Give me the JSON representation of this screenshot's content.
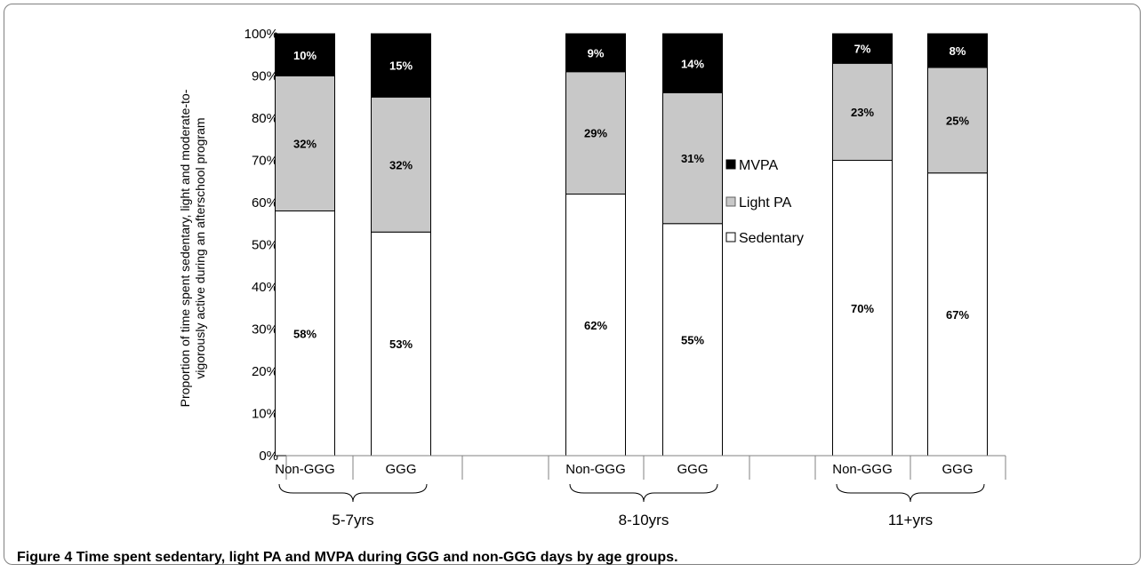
{
  "figure_caption": {
    "label": "Figure 4",
    "text": "Time spent sedentary, light PA and MVPA during GGG and non-GGG days by age groups."
  },
  "chart_data": {
    "type": "bar",
    "stacked": true,
    "ylabel": "Proportion of time spent sedentary, light and moderate-to-vigorously active during an afterschool program",
    "ylim": [
      0,
      100
    ],
    "yticks": [
      "0%",
      "10%",
      "20%",
      "30%",
      "40%",
      "50%",
      "60%",
      "70%",
      "80%",
      "90%",
      "100%"
    ],
    "groups": [
      "5-7yrs",
      "8-10yrs",
      "11+yrs"
    ],
    "categories": [
      "Non-GGG",
      "GGG",
      "Non-GGG",
      "GGG",
      "Non-GGG",
      "GGG"
    ],
    "group_of_category": [
      0,
      0,
      1,
      1,
      2,
      2
    ],
    "series": [
      {
        "name": "Sedentary",
        "color": "#ffffff",
        "values": [
          58,
          53,
          62,
          55,
          70,
          67
        ],
        "labels": [
          "58%",
          "53%",
          "62%",
          "55%",
          "70%",
          "67%"
        ]
      },
      {
        "name": "Light PA",
        "color": "#c8c8c8",
        "values": [
          32,
          32,
          29,
          31,
          23,
          25
        ],
        "labels": [
          "32%",
          "32%",
          "29%",
          "31%",
          "23%",
          "25%"
        ]
      },
      {
        "name": "MVPA",
        "color": "#000000",
        "values": [
          10,
          15,
          9,
          14,
          7,
          8
        ],
        "labels": [
          "10%",
          "15%",
          "9%",
          "14%",
          "7%",
          "8%"
        ]
      }
    ],
    "legend": {
      "placement": "right-middle",
      "order": [
        "MVPA",
        "Light PA",
        "Sedentary"
      ],
      "markers": [
        "■",
        "■",
        "□"
      ]
    },
    "grid": false
  }
}
